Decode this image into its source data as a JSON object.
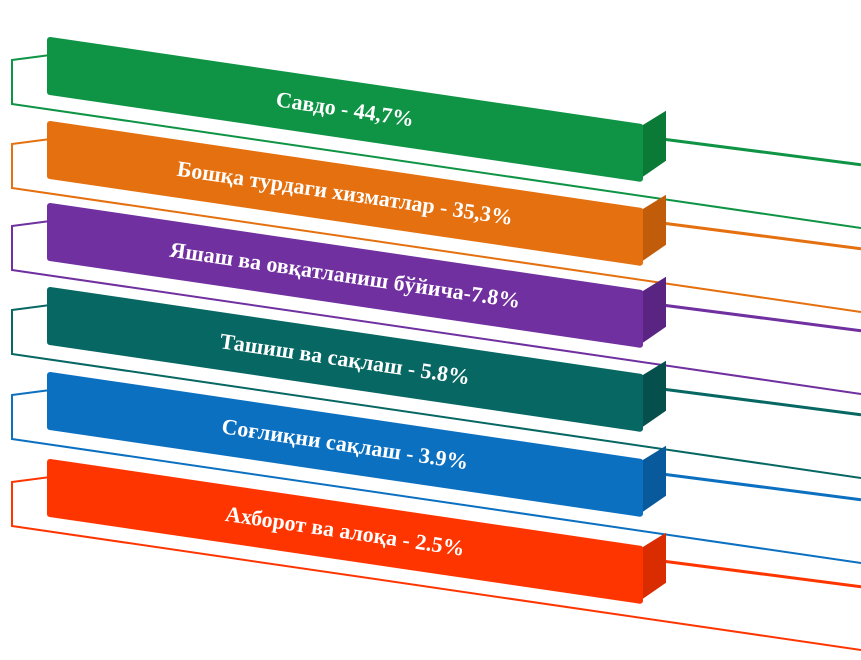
{
  "diagram": {
    "items": [
      {
        "label": "Савдо - 44,7%",
        "color": "#0e9444",
        "side_color": "#0a7a36"
      },
      {
        "label": "Бошқа турдаги хизматлар - 35,3%",
        "color": "#e4700f",
        "side_color": "#c15c0a"
      },
      {
        "label": "Яшаш ва овқатланиш бўйича-7.8%",
        "color": "#7030a0",
        "side_color": "#5a2582"
      },
      {
        "label": "Ташиш ва сақлаш - 5.8%",
        "color": "#076762",
        "side_color": "#05504c"
      },
      {
        "label": "Соғлиқни сақлаш - 3.9%",
        "color": "#0c70c1",
        "side_color": "#095a9c"
      },
      {
        "label": "Ахборот ва алоқа - 2.5%",
        "color": "#ff3500",
        "side_color": "#d92c00"
      }
    ]
  }
}
